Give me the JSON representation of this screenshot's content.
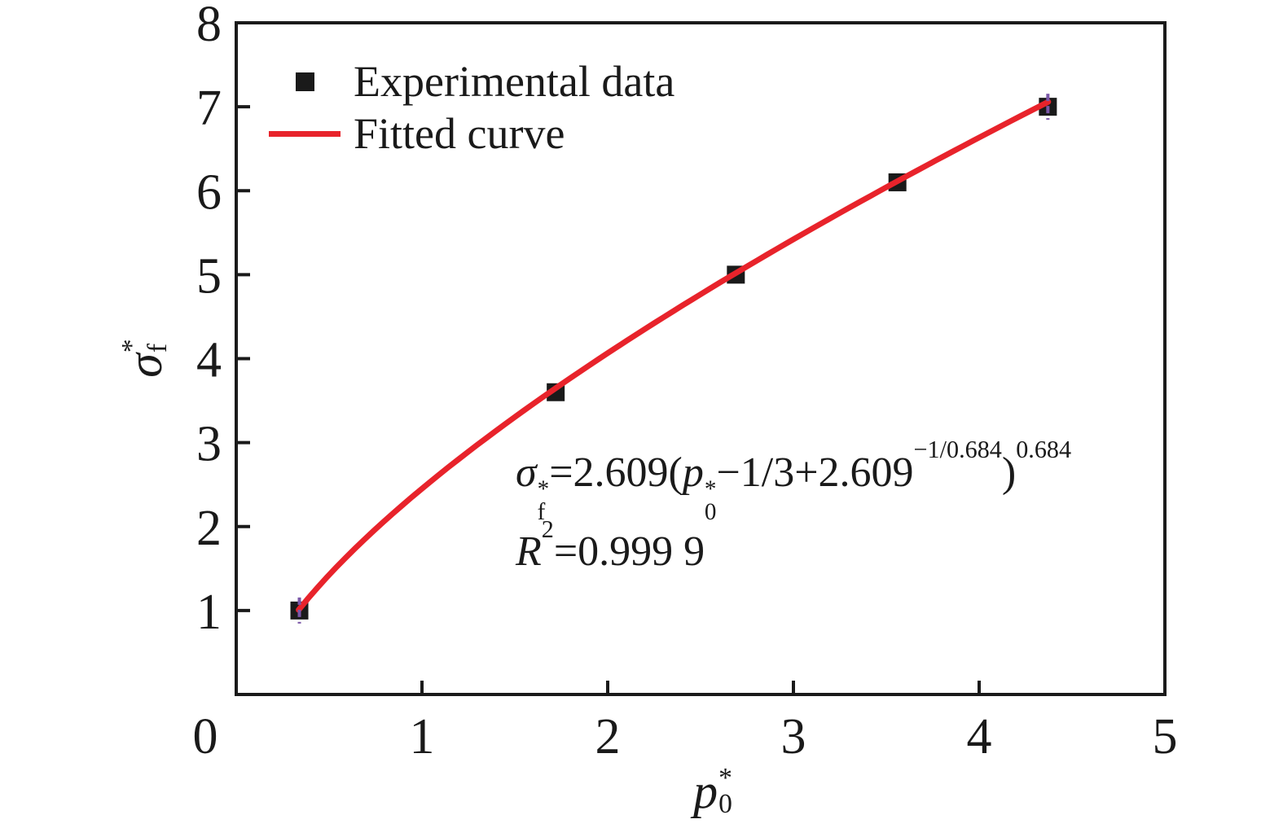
{
  "colors": {
    "foreground": "#1a1a1a",
    "experimental_marker": "#1a1a1a",
    "fitted_curve": "#e8232b",
    "endpoint_mark": "#7b57a8"
  },
  "legend": {
    "items": [
      {
        "label": "Experimental data",
        "symbol": "black-square"
      },
      {
        "label": "Fitted curve",
        "symbol": "red-line"
      }
    ]
  },
  "axes": {
    "x_label": {
      "base": "p",
      "sup": "*",
      "sub": "0"
    },
    "y_label": {
      "base": "σ",
      "sup": "*",
      "sub": "f"
    },
    "x_tick_labels": [
      "0",
      "1",
      "2",
      "3",
      "4",
      "5"
    ],
    "y_tick_labels": [
      "1",
      "2",
      "3",
      "4",
      "5",
      "6",
      "7",
      "8"
    ]
  },
  "annotation": {
    "line1": {
      "sigma": "σ",
      "sigma_sup": "*",
      "sigma_sub": "f",
      "seg1": "=2.609(",
      "p": "p",
      "p_sup": "*",
      "p_sub": "0",
      "seg2": "−1/3+2.609",
      "exp1": "−1/0.684",
      "seg3": ")",
      "exp2": "0.684"
    },
    "line2": {
      "r": "R",
      "r_sup": "2",
      "seg": "=0.999 9"
    }
  },
  "chart_data": {
    "type": "scatter",
    "title": "",
    "xlabel": "p0*",
    "ylabel": "sigma_f*",
    "xlim": [
      0,
      5
    ],
    "ylim": [
      0,
      8
    ],
    "x_ticks": [
      0,
      1,
      2,
      3,
      4,
      5
    ],
    "y_ticks": [
      1,
      2,
      3,
      4,
      5,
      6,
      7,
      8
    ],
    "grid": false,
    "legend_position": "upper-left-inside",
    "series": [
      {
        "name": "Experimental data",
        "type": "scatter",
        "marker": "square",
        "color": "#1a1a1a",
        "points": [
          [
            0.34,
            1.0
          ],
          [
            1.72,
            3.6
          ],
          [
            2.69,
            5.0
          ],
          [
            3.56,
            6.1
          ],
          [
            4.37,
            7.0
          ]
        ]
      },
      {
        "name": "Fitted curve",
        "type": "line",
        "color": "#e8232b",
        "equation": "sigma_f* = 2.609*(p0* - 1/3 + 2.609^(-1/0.684))^0.684",
        "fit_params": {
          "A": 2.609,
          "n": 0.684,
          "offset": -0.3333333
        },
        "x_range": [
          0.336,
          4.372
        ],
        "r_squared": "0.999 9"
      }
    ],
    "endpoint_marks": {
      "color": "#7b57a8",
      "point_indices": [
        0,
        4
      ]
    }
  }
}
